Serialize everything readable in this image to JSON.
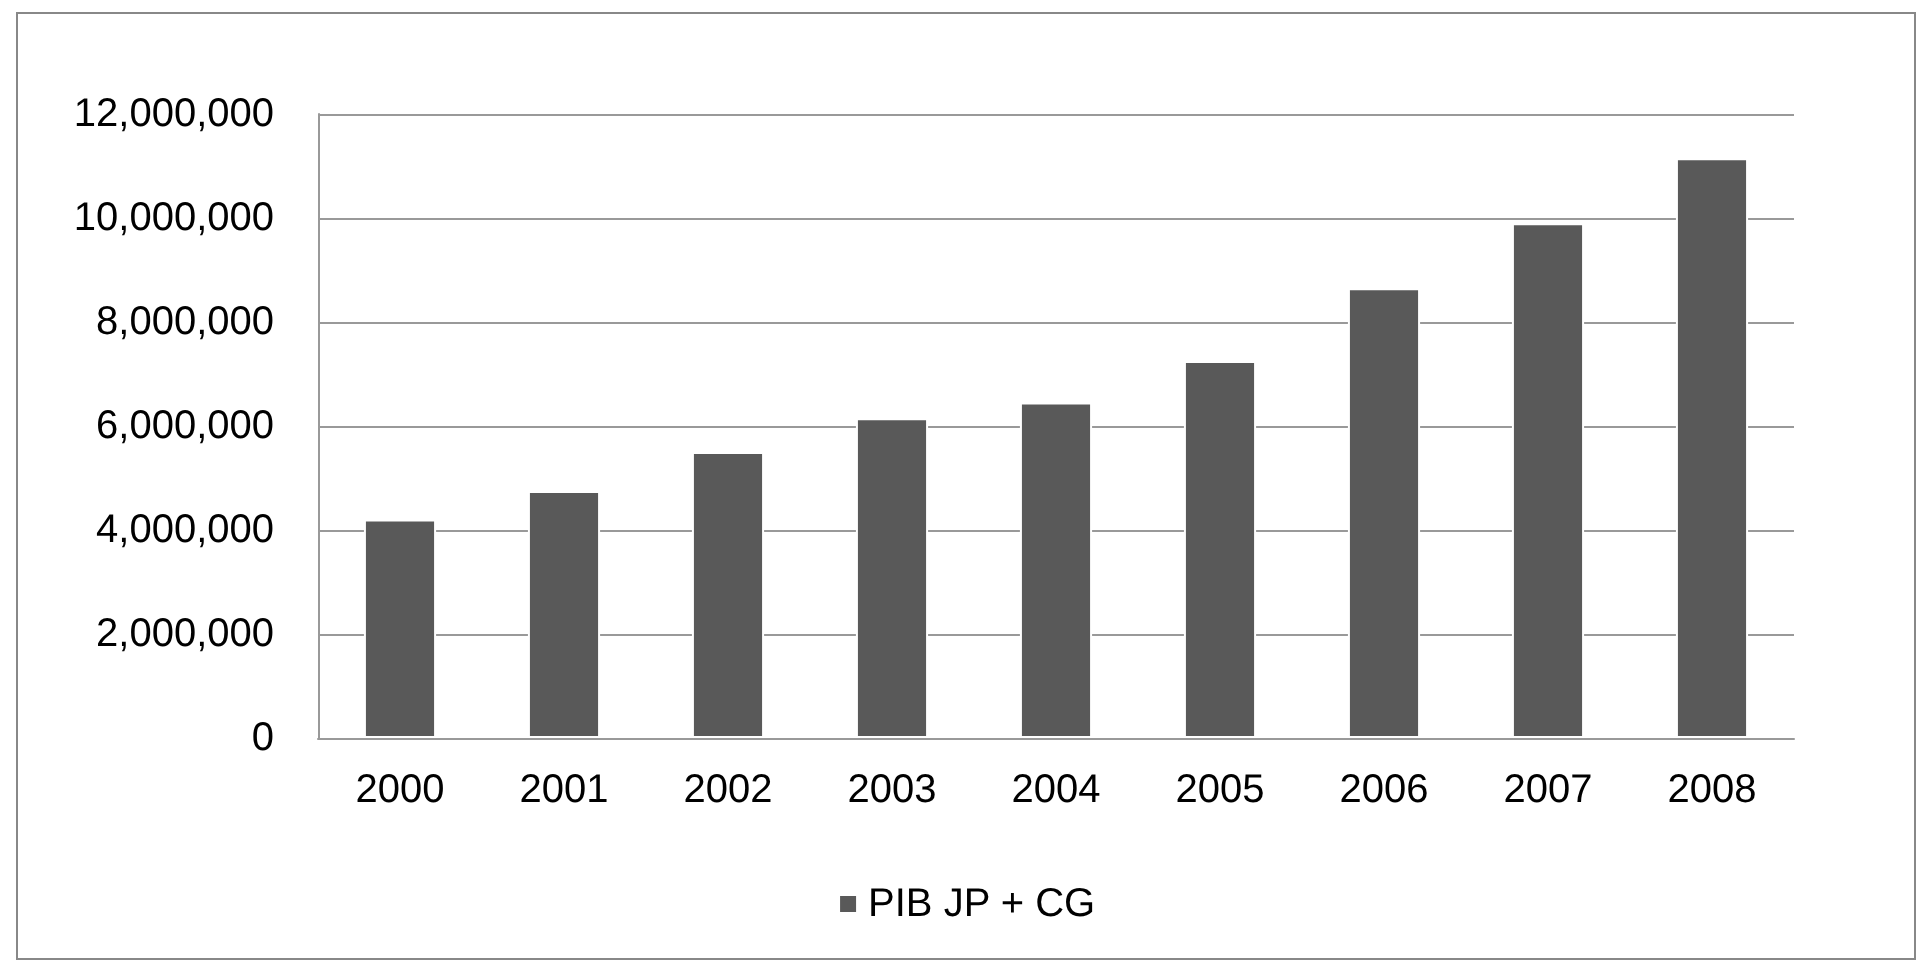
{
  "chart_data": {
    "type": "bar",
    "categories": [
      "2000",
      "2001",
      "2002",
      "2003",
      "2004",
      "2005",
      "2006",
      "2007",
      "2008"
    ],
    "series": [
      {
        "name": "PIB JP + CG",
        "color": "#595959",
        "values": [
          4200000,
          4750000,
          5500000,
          6150000,
          6450000,
          7250000,
          8650000,
          9900000,
          11150000
        ]
      }
    ],
    "ylim": [
      0,
      12000000
    ],
    "yticks": [
      0,
      {
        "value": 2000000,
        "label": "2,000,000"
      },
      {
        "value": 4000000,
        "label": "4,000,000"
      },
      {
        "value": 6000000,
        "label": "6,000,000"
      },
      {
        "value": 8000000,
        "label": "8,000,000"
      },
      {
        "value": 10000000,
        "label": "10,000,000"
      },
      {
        "value": 12000000,
        "label": "12,000,000"
      }
    ],
    "grid": "y",
    "legend": "bottom"
  }
}
